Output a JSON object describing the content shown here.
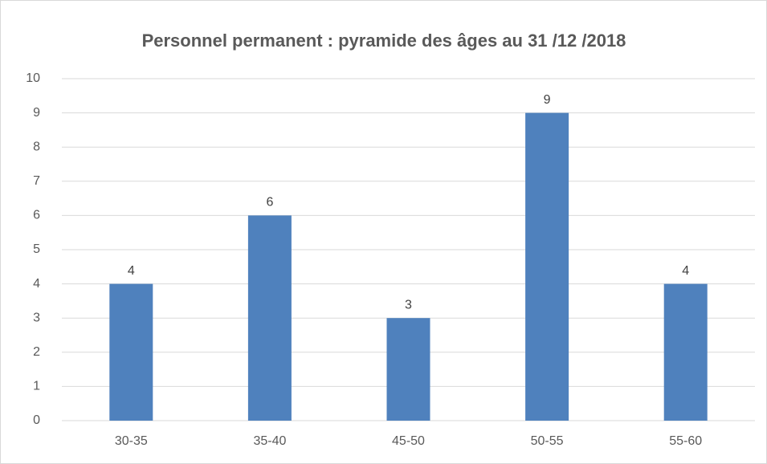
{
  "chart_data": {
    "type": "bar",
    "title": "Personnel permanent  : pyramide des âges au 31 /12 /2018",
    "categories": [
      "30-35",
      "35-40",
      "45-50",
      "50-55",
      "55-60"
    ],
    "values": [
      4,
      6,
      3,
      9,
      4
    ],
    "color": "#4f81bd",
    "ylim": [
      0,
      10
    ],
    "yticks": [
      0,
      1,
      2,
      3,
      4,
      5,
      6,
      7,
      8,
      9,
      10
    ],
    "grid": true
  }
}
